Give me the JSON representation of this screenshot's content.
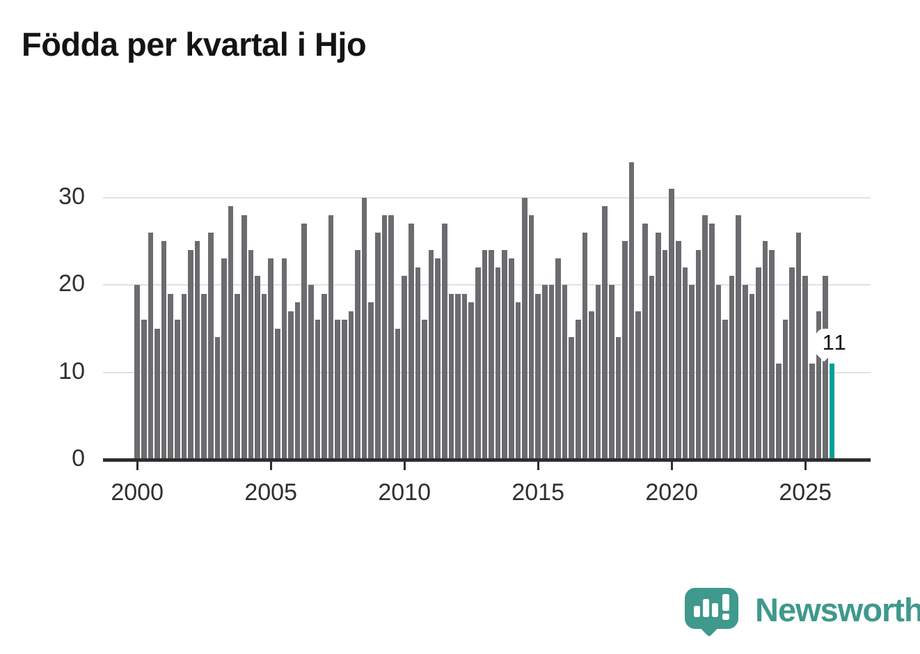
{
  "title": "Födda per kvartal i Hjo",
  "chart_data": {
    "type": "bar",
    "title": "Födda per kvartal i Hjo",
    "x_axis": {
      "tick_labels": [
        "2000",
        "2005",
        "2010",
        "2015",
        "2020",
        "2025"
      ],
      "bars_are": "quarters, first bar 2000 Q1, one bar per quarter"
    },
    "y_axis": {
      "tick_labels": [
        "0",
        "10",
        "20",
        "30"
      ],
      "range": [
        0,
        35
      ],
      "grid": "horizontal gridlines at 10, 20 and 30"
    },
    "series": [
      {
        "name": "Födda per kvartal",
        "values": [
          20,
          16,
          26,
          15,
          25,
          19,
          16,
          19,
          24,
          25,
          19,
          26,
          14,
          23,
          29,
          19,
          28,
          24,
          21,
          19,
          23,
          15,
          23,
          17,
          18,
          27,
          20,
          16,
          19,
          28,
          16,
          16,
          17,
          24,
          30,
          18,
          26,
          28,
          28,
          15,
          21,
          27,
          22,
          16,
          24,
          23,
          27,
          19,
          19,
          19,
          18,
          22,
          24,
          24,
          22,
          24,
          23,
          18,
          30,
          28,
          19,
          20,
          20,
          23,
          20,
          14,
          16,
          26,
          17,
          20,
          29,
          20,
          14,
          25,
          34,
          17,
          27,
          21,
          26,
          24,
          31,
          25,
          22,
          20,
          24,
          28,
          27,
          20,
          16,
          21,
          28,
          20,
          19,
          22,
          25,
          24,
          11,
          16,
          22,
          26,
          21,
          11,
          17,
          21,
          11
        ]
      }
    ],
    "highlight": {
      "position": "last bar",
      "value": 11,
      "data_label": "11",
      "color": "#00a096"
    },
    "bar_color": "#6c6c70",
    "legend": "none"
  },
  "colors": {
    "background": "#ffffff",
    "bar_gray": "#6c6c70",
    "bar_highlight_teal": "#00a096",
    "axis": "#2e2e2e",
    "gridline": "#e1e1e1",
    "tick_text": "#2f2f2f",
    "title_text": "#141414",
    "brand_teal": "#3f998c"
  },
  "branding": {
    "logo_text": "Newsworthy",
    "logo_icon": "newsworthy-speech-bubble-bar-chart-icon"
  }
}
